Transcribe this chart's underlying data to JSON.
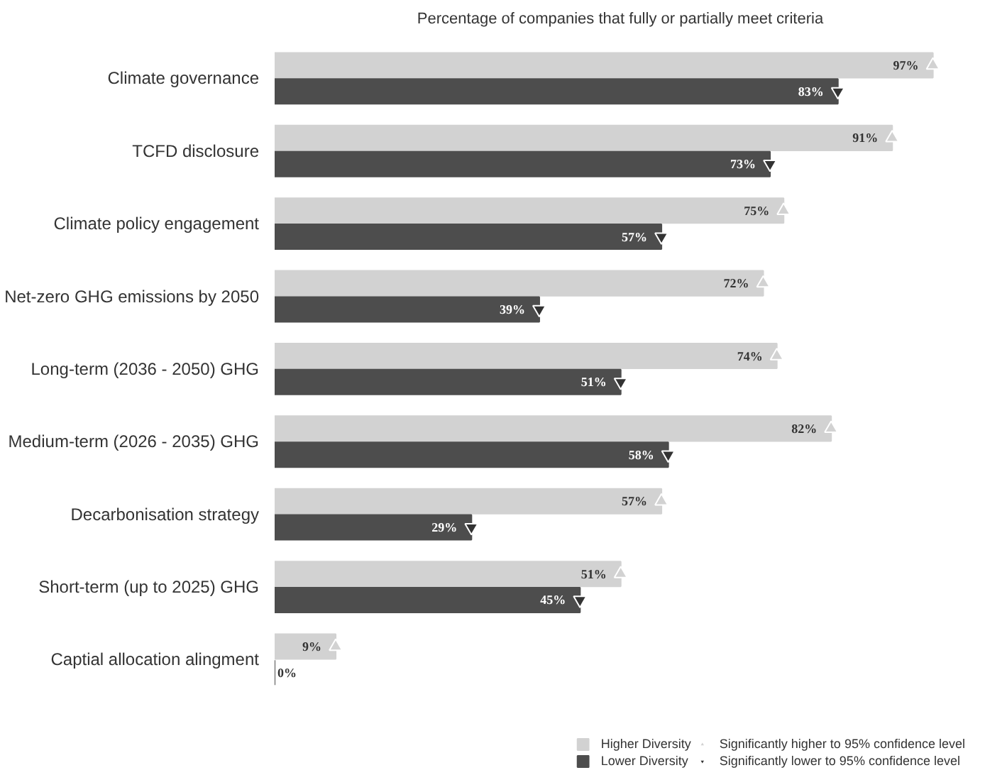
{
  "chart_data": {
    "type": "bar",
    "orientation": "horizontal",
    "title": "Percentage of companies that fully or partially meet criteria",
    "categories": [
      "Climate governance",
      "TCFD disclosure",
      "Climate policy engagement",
      "Net-zero GHG emissions by 2050",
      "Long-term (2036 - 2050) GHG",
      "Medium-term (2026 - 2035) GHG",
      "Decarbonisation strategy",
      "Short-term (up to 2025) GHG",
      "Captial allocation alingment"
    ],
    "series": [
      {
        "name": "Higher Diversity",
        "color": "#d2d2d2",
        "values": [
          97,
          91,
          75,
          72,
          74,
          82,
          57,
          51,
          9
        ],
        "value_labels": [
          "97%",
          "91%",
          "75%",
          "72%",
          "74%",
          "82%",
          "57%",
          "51%",
          "9%"
        ]
      },
      {
        "name": "Lower Diversity",
        "color": "#4d4d4d",
        "values": [
          83,
          73,
          57,
          39,
          51,
          58,
          29,
          45,
          0
        ],
        "value_labels": [
          "83%",
          "73%",
          "57%",
          "39%",
          "51%",
          "58%",
          "29%",
          "45%",
          "0%"
        ]
      },
      {
        "name": "Significantly higher to 95% confidence level",
        "type": "scatter",
        "marker": "triangle",
        "color": "#d2d2d2",
        "values": [
          97,
          91,
          75,
          72,
          74,
          82,
          57,
          51,
          9
        ]
      },
      {
        "name": "Significantly lower to 95% confidence level",
        "type": "scatter",
        "marker": "triangle",
        "color": "#333333",
        "values": [
          83,
          73,
          57,
          39,
          51,
          58,
          29,
          45,
          null
        ]
      }
    ],
    "tick_labels": "y",
    "legend": "bottom right"
  }
}
